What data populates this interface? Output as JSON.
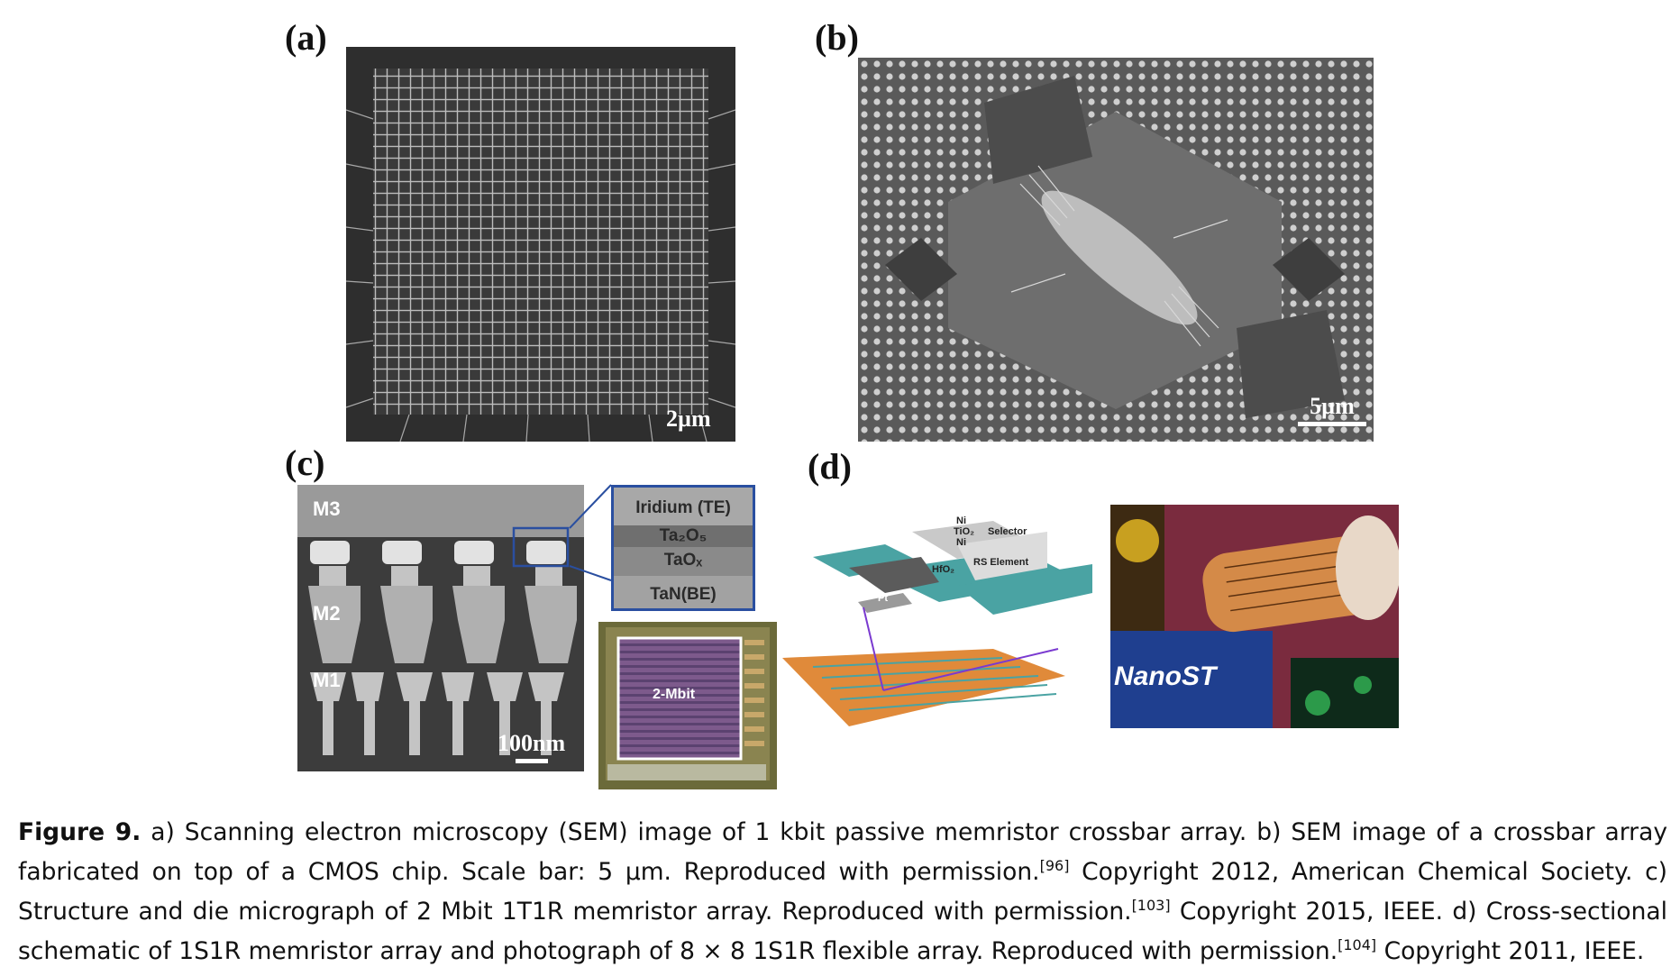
{
  "panels": {
    "a": {
      "label": "(a)",
      "scale": "2µm"
    },
    "b": {
      "label": "(b)",
      "scale": "5µm"
    },
    "c": {
      "label": "(c)",
      "scale": "100nm",
      "metal_layers": [
        "M3",
        "M2",
        "M1"
      ],
      "stack_layers": [
        "Iridium (TE)",
        "Ta₂O₅",
        "TaOₓ",
        "TaN(BE)"
      ],
      "die_label": "2-Mbit"
    },
    "d": {
      "label": "(d)",
      "schematic_labels": {
        "ni_top": "Ni",
        "tio2": "TiO₂",
        "ni_bottom": "Ni",
        "selector": "Selector",
        "rs_element": "RS Element",
        "hfo2": "HfO₂",
        "pt": "Pt"
      },
      "photo_text": "NanoST"
    }
  },
  "caption": {
    "figure_label": "Figure 9.",
    "part1": " a) Scanning electron microscopy (SEM) image of 1 kbit passive memristor crossbar array. b) SEM image of a crossbar array fabricated on top of a CMOS chip. Scale bar: 5 µm. Reproduced with permission.",
    "ref1": "[96]",
    "part2": " Copyright 2012, American Chemical Society. c) Structure and die micrograph of 2 Mbit 1T1R memristor array. Reproduced with permission.",
    "ref2": "[103]",
    "part3": " Copyright 2015, IEEE. d) Cross-sectional schematic of 1S1R memristor array and photograph of 8 × 8 1S1R flexible array. Reproduced with permission.",
    "ref3": "[104]",
    "part4": " Copyright 2011, IEEE."
  },
  "colors": {
    "sem_bg": "#3a3a3a",
    "stack_border": "#2a4fa0",
    "schematic_teal": "#4aa3a3",
    "board_orange": "#e08a3a"
  }
}
